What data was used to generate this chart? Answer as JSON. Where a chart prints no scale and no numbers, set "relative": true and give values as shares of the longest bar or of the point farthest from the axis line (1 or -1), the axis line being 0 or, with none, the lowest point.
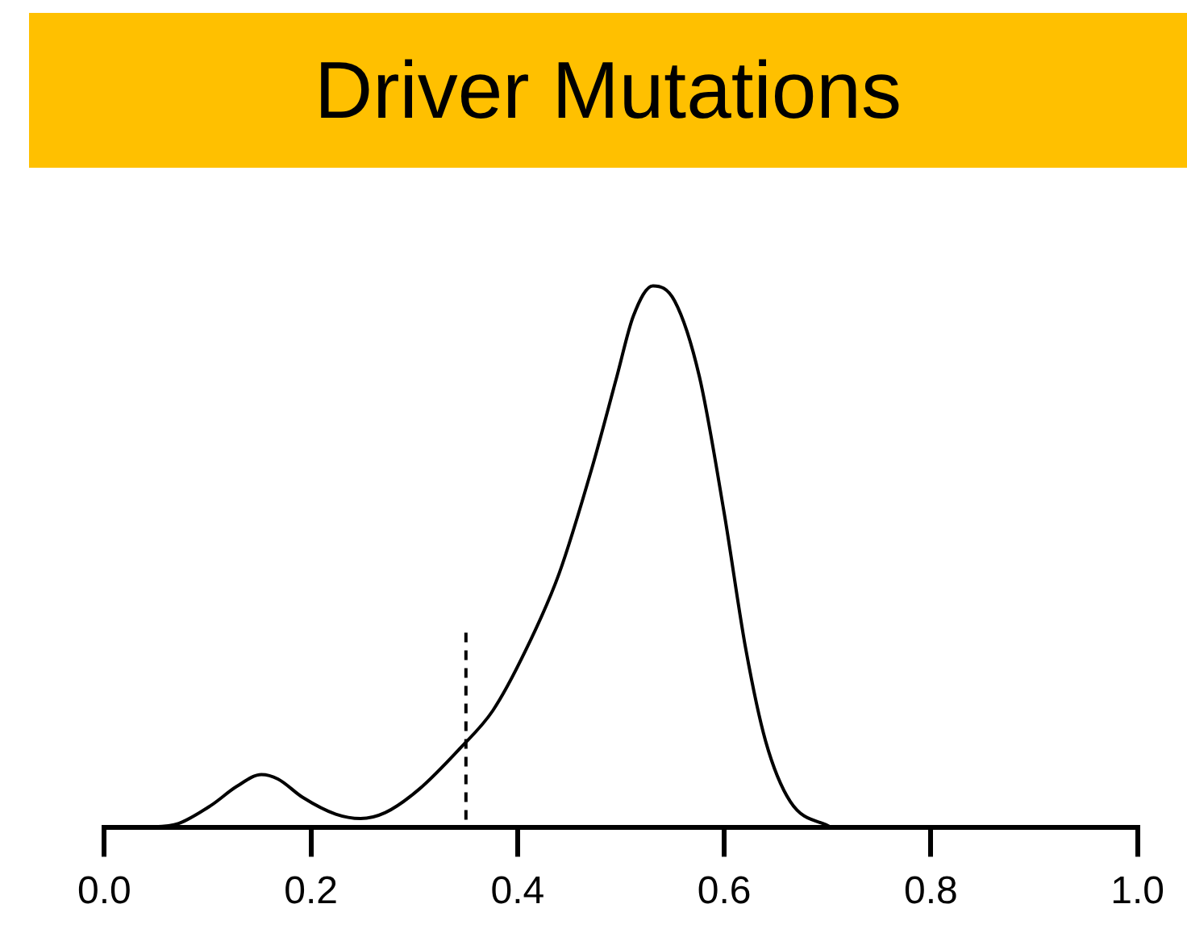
{
  "chart_data": {
    "type": "line",
    "title": "Driver Mutations",
    "relative": true,
    "color": "#000000",
    "marker": "none",
    "line_style": "solid",
    "grid": false,
    "legend": false,
    "tick_labels": "x",
    "x": [
      0.037,
      0.072,
      0.104,
      0.128,
      0.152,
      0.168,
      0.192,
      0.224,
      0.248,
      0.272,
      0.304,
      0.344,
      0.376,
      0.408,
      0.44,
      0.472,
      0.496,
      0.512,
      0.531,
      0.552,
      0.576,
      0.6,
      0.621,
      0.64,
      0.664,
      0.704
    ],
    "values": [
      0,
      0.008,
      0.042,
      0.076,
      0.098,
      0.09,
      0.056,
      0.025,
      0.017,
      0.028,
      0.07,
      0.146,
      0.216,
      0.328,
      0.468,
      0.664,
      0.832,
      0.944,
      1,
      0.972,
      0.832,
      0.58,
      0.328,
      0.16,
      0.048,
      0
    ],
    "xlim": [
      0,
      1
    ],
    "xticks": [
      {
        "value": 0,
        "label": "0.0"
      },
      {
        "value": 0.2,
        "label": "0.2"
      },
      {
        "value": 0.4,
        "label": "0.4"
      },
      {
        "value": 0.6,
        "label": "0.6"
      },
      {
        "value": 0.8,
        "label": "0.8"
      },
      {
        "value": 1,
        "label": "1.0"
      }
    ],
    "ref_lines": [
      {
        "axis": "x",
        "value": 0.35,
        "color": "#000000",
        "line_style": "dashed"
      }
    ]
  }
}
